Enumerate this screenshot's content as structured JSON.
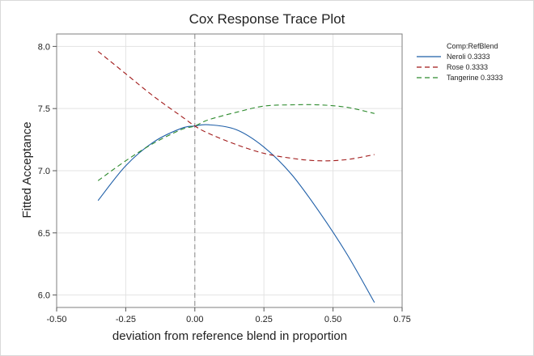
{
  "chart_data": {
    "type": "line",
    "title": "Cox Response Trace Plot",
    "xlabel": "deviation from reference blend in proportion",
    "ylabel": "Fitted Acceptance",
    "xlim": [
      -0.5,
      0.75
    ],
    "ylim": [
      5.9,
      8.1
    ],
    "xticks": [
      "-0.50",
      "-0.25",
      "0.00",
      "0.25",
      "0.50",
      "0.75"
    ],
    "yticks": [
      "6.0",
      "6.5",
      "7.0",
      "7.5",
      "8.0"
    ],
    "xtick_values": [
      -0.5,
      -0.25,
      0.0,
      0.25,
      0.5,
      0.75
    ],
    "ytick_values": [
      6.0,
      6.5,
      7.0,
      7.5,
      8.0
    ],
    "grid": true,
    "reference_line_x": 0.0,
    "legend": {
      "title": "Comp:RefBlend",
      "position": "right"
    },
    "series": [
      {
        "name": "Neroli",
        "ref": "0.3333",
        "color": "#1f5fa8",
        "style": "solid",
        "x": [
          -0.35,
          -0.25,
          -0.15,
          -0.05,
          0.0,
          0.05,
          0.15,
          0.25,
          0.35,
          0.45,
          0.55,
          0.65
        ],
        "y": [
          6.76,
          7.04,
          7.23,
          7.34,
          7.36,
          7.37,
          7.33,
          7.19,
          6.97,
          6.67,
          6.33,
          5.94
        ]
      },
      {
        "name": "Rose",
        "ref": "0.3333",
        "color": "#a01818",
        "style": "dashed",
        "x": [
          -0.35,
          -0.25,
          -0.15,
          -0.05,
          0.0,
          0.05,
          0.15,
          0.25,
          0.35,
          0.45,
          0.55,
          0.65
        ],
        "y": [
          7.96,
          7.78,
          7.6,
          7.44,
          7.36,
          7.3,
          7.21,
          7.14,
          7.1,
          7.08,
          7.09,
          7.13
        ]
      },
      {
        "name": "Tangerine",
        "ref": "0.3333",
        "color": "#2e8b2e",
        "style": "dashed",
        "x": [
          -0.35,
          -0.25,
          -0.15,
          -0.05,
          0.0,
          0.05,
          0.15,
          0.25,
          0.35,
          0.45,
          0.55,
          0.65
        ],
        "y": [
          6.92,
          7.08,
          7.22,
          7.33,
          7.36,
          7.41,
          7.47,
          7.52,
          7.53,
          7.53,
          7.51,
          7.46
        ]
      }
    ]
  }
}
